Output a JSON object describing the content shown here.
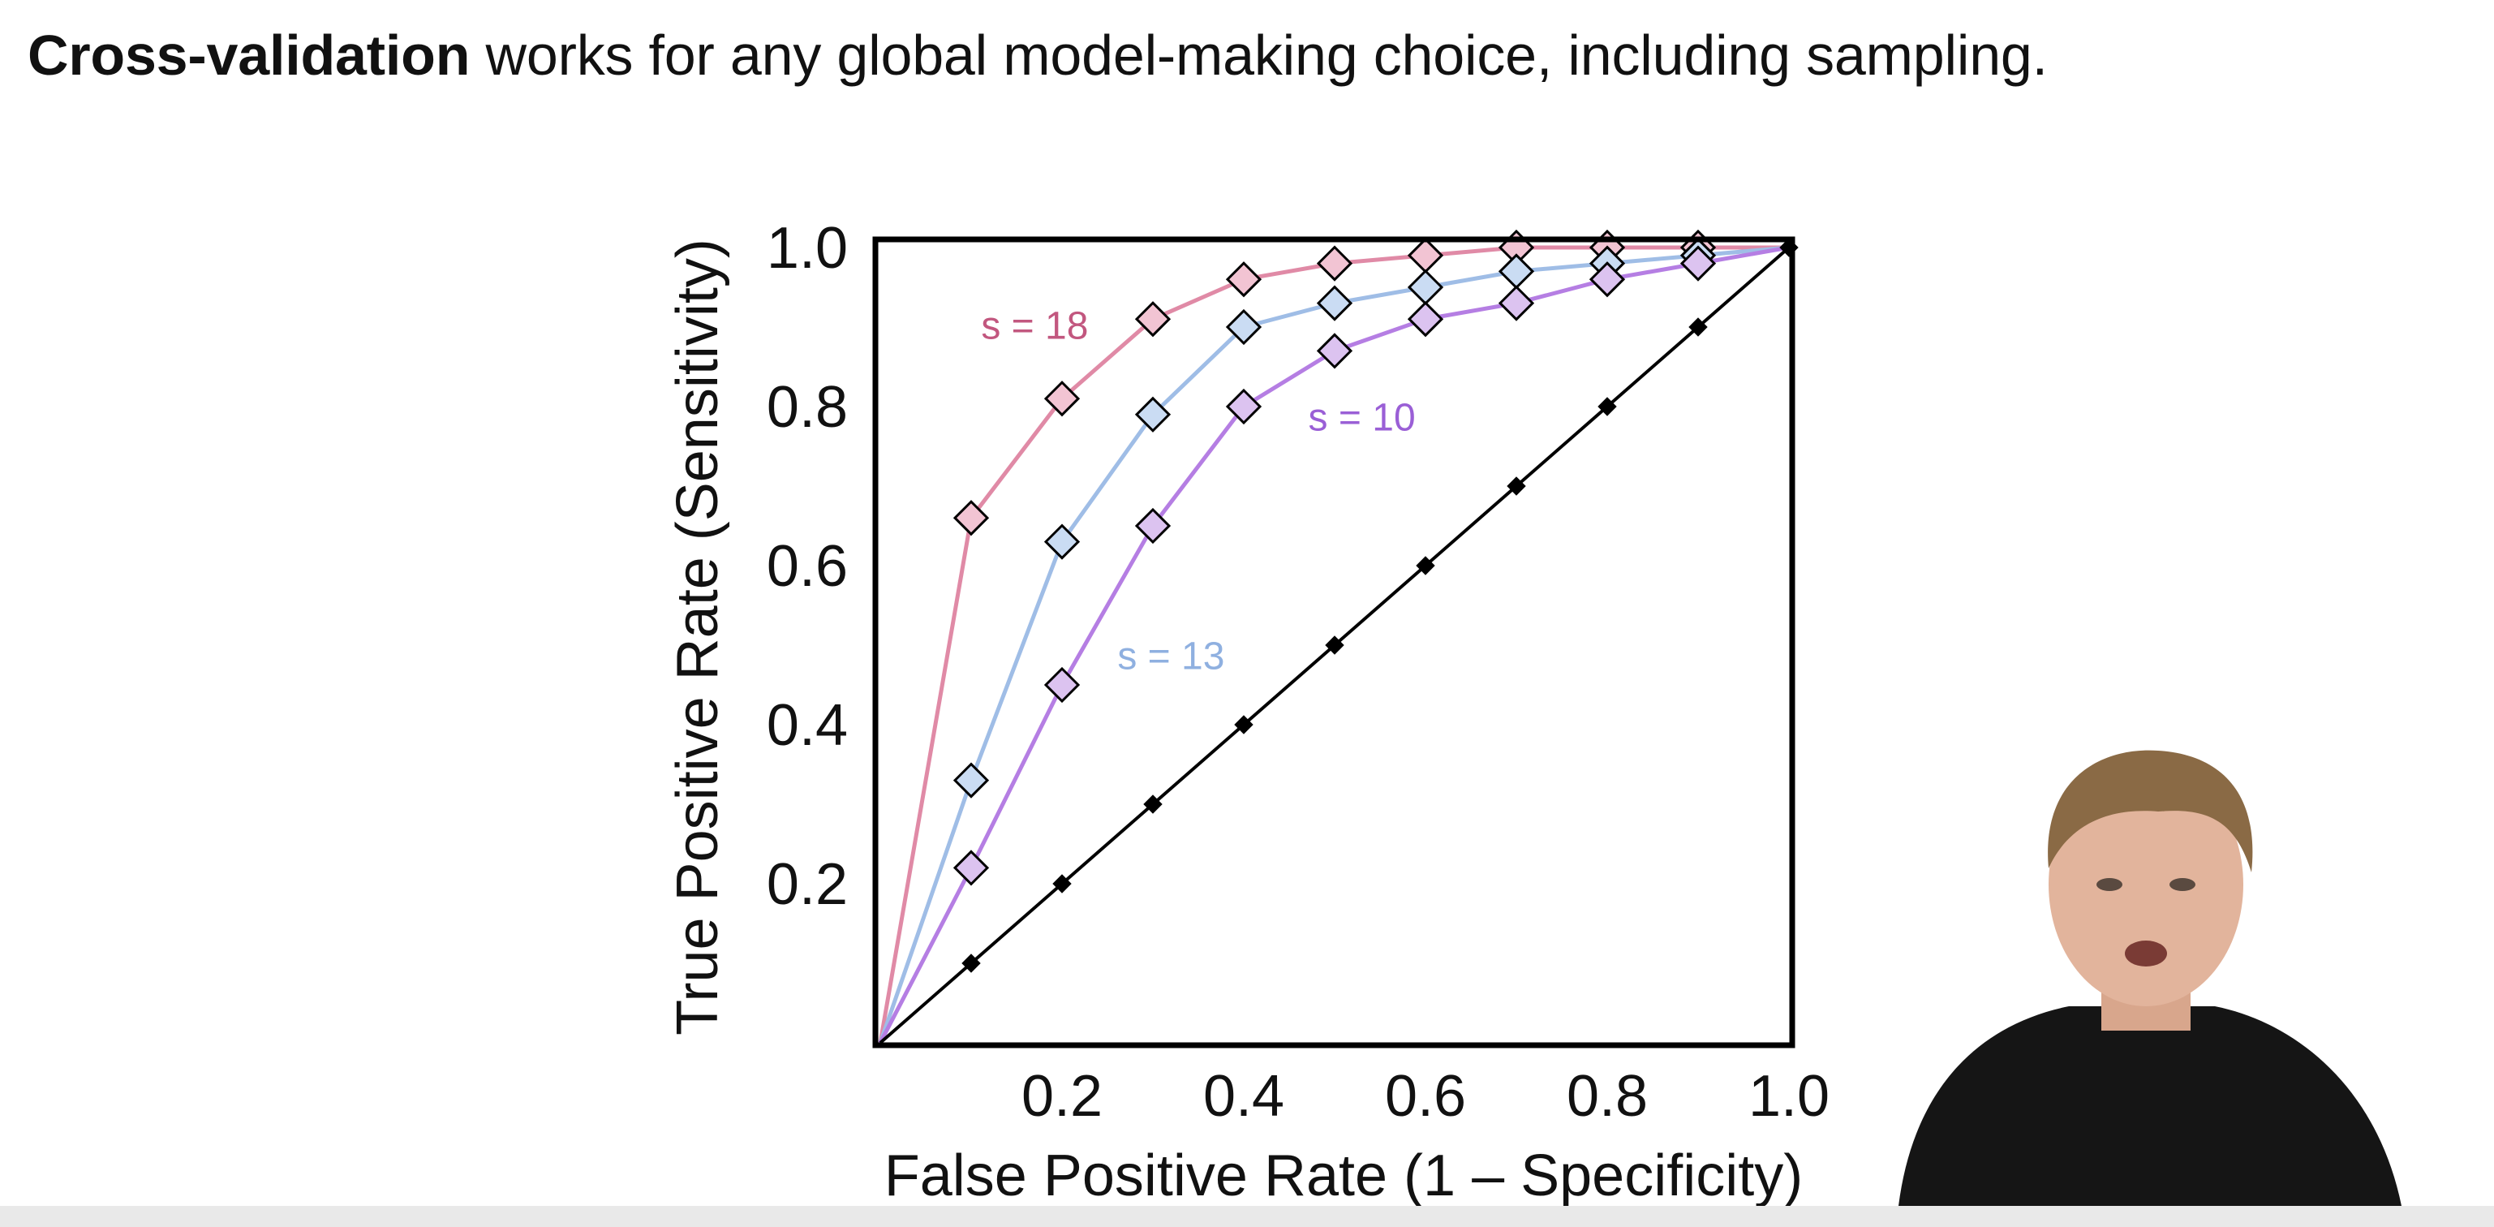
{
  "headline": {
    "bold": "Cross-validation",
    "rest": " works for any global model-making choice, including sampling."
  },
  "chart_data": {
    "type": "line",
    "xlabel": "False Positive Rate (1 – Specificity)",
    "ylabel": "True Positive Rate (Sensitivity)",
    "xlim": [
      0,
      1.0
    ],
    "ylim": [
      0,
      1.0
    ],
    "x_ticks": [
      "0.2",
      "0.4",
      "0.6",
      "0.8",
      "1.0"
    ],
    "y_ticks": [
      "0.2",
      "0.4",
      "0.6",
      "0.8",
      "1.0"
    ],
    "grid": false,
    "legend": "inline labels",
    "series": [
      {
        "name": "s = 18",
        "color": "#e08aa6",
        "marker_fill": "#f2c4d3",
        "points": [
          [
            0,
            0
          ],
          [
            0.1,
            0.66
          ],
          [
            0.2,
            0.81
          ],
          [
            0.3,
            0.91
          ],
          [
            0.4,
            0.96
          ],
          [
            0.5,
            0.98
          ],
          [
            0.6,
            0.99
          ],
          [
            0.7,
            1.0
          ],
          [
            0.8,
            1.0
          ],
          [
            0.9,
            1.0
          ],
          [
            1.0,
            1.0
          ]
        ]
      },
      {
        "name": "s = 13",
        "color": "#9fbde6",
        "marker_fill": "#cadcf3",
        "points": [
          [
            0,
            0
          ],
          [
            0.1,
            0.33
          ],
          [
            0.2,
            0.63
          ],
          [
            0.3,
            0.79
          ],
          [
            0.4,
            0.9
          ],
          [
            0.5,
            0.93
          ],
          [
            0.6,
            0.95
          ],
          [
            0.7,
            0.97
          ],
          [
            0.8,
            0.98
          ],
          [
            0.9,
            0.99
          ],
          [
            1.0,
            1.0
          ]
        ]
      },
      {
        "name": "s = 10",
        "color": "#b57ee3",
        "marker_fill": "#dcc3f0",
        "points": [
          [
            0,
            0
          ],
          [
            0.1,
            0.22
          ],
          [
            0.2,
            0.45
          ],
          [
            0.3,
            0.65
          ],
          [
            0.4,
            0.8
          ],
          [
            0.5,
            0.87
          ],
          [
            0.6,
            0.91
          ],
          [
            0.7,
            0.93
          ],
          [
            0.8,
            0.96
          ],
          [
            0.9,
            0.98
          ],
          [
            1.0,
            1.0
          ]
        ]
      },
      {
        "name": "",
        "color": "#000000",
        "marker_fill": "#000000",
        "points": [
          [
            0,
            0
          ],
          [
            0.1,
            0.1
          ],
          [
            0.2,
            0.2
          ],
          [
            0.3,
            0.3
          ],
          [
            0.4,
            0.4
          ],
          [
            0.5,
            0.5
          ],
          [
            0.6,
            0.6
          ],
          [
            0.7,
            0.7
          ],
          [
            0.8,
            0.8
          ],
          [
            0.9,
            0.9
          ],
          [
            1.0,
            1.0
          ]
        ]
      }
    ],
    "annotations": [
      {
        "text": "s = 18",
        "x": 0.17,
        "y": 0.885,
        "color": "#c2577f"
      },
      {
        "text": "s = 13",
        "x": 0.32,
        "y": 0.47,
        "color": "#8fb0e0"
      },
      {
        "text": "s = 10",
        "x": 0.53,
        "y": 0.77,
        "color": "#9a5fd6"
      }
    ]
  }
}
